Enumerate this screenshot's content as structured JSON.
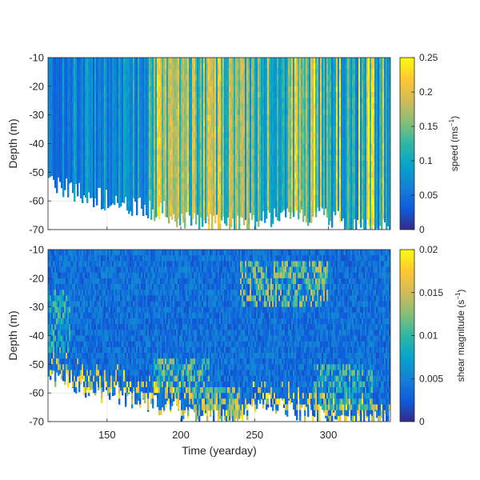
{
  "figure": {
    "xlabel": "Time (yearday)",
    "xlim": [
      110,
      342
    ],
    "xticks": [
      150,
      200,
      250,
      300
    ],
    "xtick_labels": [
      "150",
      "200",
      "250",
      "300"
    ]
  },
  "colormap": {
    "name": "parula",
    "stops": [
      "#352a87",
      "#0f5cdd",
      "#1481d6",
      "#06a4ca",
      "#2eb7a4",
      "#87bf77",
      "#d1bb59",
      "#fec832",
      "#f9fb0e"
    ]
  },
  "chart_data": [
    {
      "type": "heatmap",
      "name": "speed-panel",
      "x_label": "Time (yearday)",
      "ylabel": "Depth (m)",
      "xlim": [
        110,
        342
      ],
      "ylim": [
        -70,
        -10
      ],
      "yticks": [
        -10,
        -20,
        -30,
        -40,
        -50,
        -60,
        -70
      ],
      "ytick_labels": [
        "-10",
        "-20",
        "-30",
        "-40",
        "-50",
        "-60",
        "-70"
      ],
      "colorbar": {
        "label_main": "speed (ms",
        "label_sup": "−1",
        "label_end": ")",
        "range": [
          0,
          0.25
        ],
        "ticks": [
          0,
          0.05,
          0.1,
          0.15,
          0.2,
          0.25
        ],
        "tick_labels": [
          "0",
          "0.05",
          "0.1",
          "0.15",
          "0.2",
          "0.25"
        ]
      },
      "data_bottom_depth": [
        {
          "x": 110,
          "depth": -52
        },
        {
          "x": 130,
          "depth": -57
        },
        {
          "x": 150,
          "depth": -60
        },
        {
          "x": 170,
          "depth": -62
        },
        {
          "x": 190,
          "depth": -64
        },
        {
          "x": 210,
          "depth": -68
        },
        {
          "x": 240,
          "depth": -68
        },
        {
          "x": 260,
          "depth": -66
        },
        {
          "x": 280,
          "depth": -65
        },
        {
          "x": 300,
          "depth": -66
        },
        {
          "x": 320,
          "depth": -70
        },
        {
          "x": 342,
          "depth": -70
        }
      ],
      "time_profile": [
        {
          "x": 110,
          "speed": 0.07
        },
        {
          "x": 150,
          "speed": 0.08
        },
        {
          "x": 175,
          "speed": 0.1
        },
        {
          "x": 190,
          "speed": 0.15
        },
        {
          "x": 210,
          "speed": 0.16
        },
        {
          "x": 230,
          "speed": 0.17
        },
        {
          "x": 250,
          "speed": 0.13
        },
        {
          "x": 265,
          "speed": 0.12
        },
        {
          "x": 280,
          "speed": 0.18
        },
        {
          "x": 300,
          "speed": 0.12
        },
        {
          "x": 320,
          "speed": 0.11
        },
        {
          "x": 342,
          "speed": 0.09
        }
      ]
    },
    {
      "type": "heatmap",
      "name": "shear-panel",
      "xlabel": "Time (yearday)",
      "ylabel": "Depth (m)",
      "xlim": [
        110,
        342
      ],
      "ylim": [
        -70,
        -10
      ],
      "yticks": [
        -10,
        -20,
        -30,
        -40,
        -50,
        -60,
        -70
      ],
      "ytick_labels": [
        "-10",
        "-20",
        "-30",
        "-40",
        "-50",
        "-60",
        "-70"
      ],
      "colorbar": {
        "label_main": "shear magnitude (s",
        "label_sup": "−1",
        "label_end": ")",
        "range": [
          0,
          0.02
        ],
        "ticks": [
          0,
          0.005,
          0.01,
          0.015,
          0.02
        ],
        "tick_labels": [
          "0",
          "0.005",
          "0.01",
          "0.015",
          "0.02"
        ]
      },
      "data_bottom_depth": [
        {
          "x": 110,
          "depth": -55
        },
        {
          "x": 150,
          "depth": -60
        },
        {
          "x": 180,
          "depth": -63
        },
        {
          "x": 200,
          "depth": -66
        },
        {
          "x": 215,
          "depth": -70
        },
        {
          "x": 240,
          "depth": -69
        },
        {
          "x": 260,
          "depth": -64
        },
        {
          "x": 280,
          "depth": -66
        },
        {
          "x": 300,
          "depth": -69
        },
        {
          "x": 320,
          "depth": -70
        },
        {
          "x": 342,
          "depth": -70
        }
      ],
      "background_shear": 0.0045,
      "high_shear_regions": [
        {
          "x_range": [
            240,
            300
          ],
          "depth_range": [
            -30,
            -15
          ],
          "shear": 0.013
        },
        {
          "x_range": [
            180,
            220
          ],
          "depth_range": [
            -60,
            -48
          ],
          "shear": 0.012
        },
        {
          "x_range": [
            205,
            240
          ],
          "depth_range": [
            -70,
            -58
          ],
          "shear": 0.014
        },
        {
          "x_range": [
            290,
            330
          ],
          "depth_range": [
            -65,
            -50
          ],
          "shear": 0.011
        },
        {
          "x_range": [
            110,
            125
          ],
          "depth_range": [
            -45,
            -25
          ],
          "shear": 0.01
        }
      ]
    }
  ]
}
